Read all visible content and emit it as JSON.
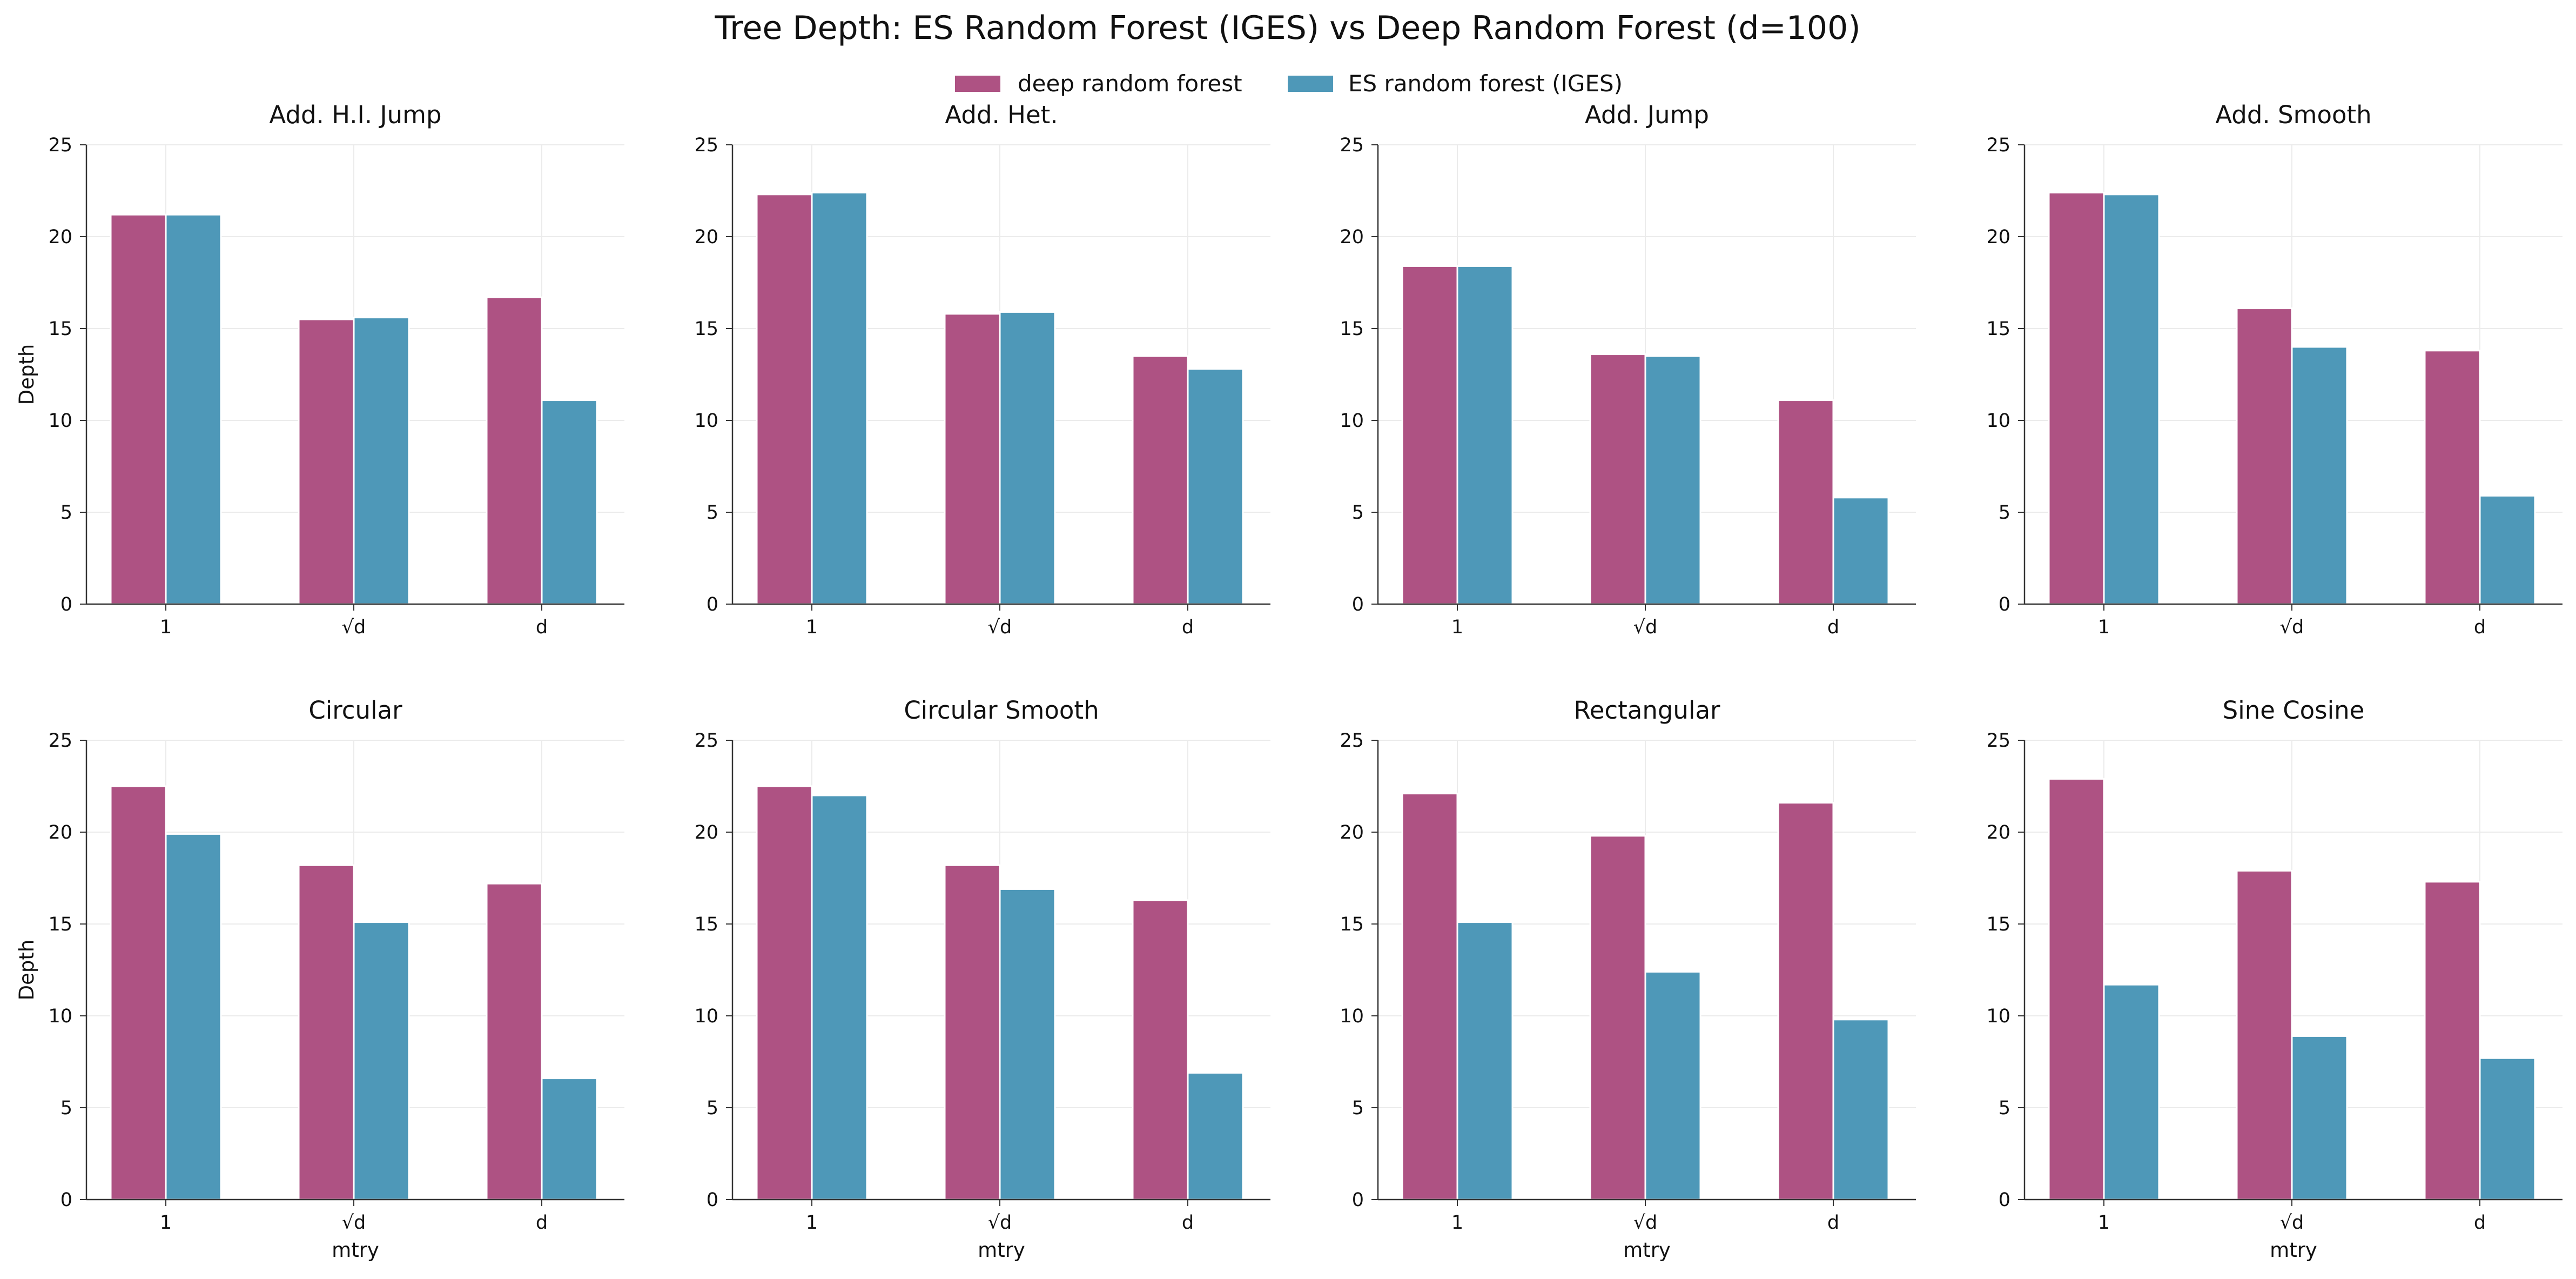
{
  "figure_title": "Tree Depth: ES Random Forest (IGES) vs Deep Random Forest (d=100)",
  "legend": [
    {
      "label": "deep random forest",
      "color": "#ae5283"
    },
    {
      "label": "ES random forest (IGES)",
      "color": "#4e98b8"
    }
  ],
  "chart_data": [
    {
      "type": "bar",
      "title": "Add. H.I. Jump",
      "categories": [
        "1",
        "√d",
        "d"
      ],
      "xlabel": "",
      "ylabel": "Depth",
      "ylim": [
        0,
        25
      ],
      "yticks": [
        "0",
        "5",
        "10",
        "15",
        "20",
        "25"
      ],
      "grid": true,
      "series": [
        {
          "name": "deep random forest",
          "values": [
            21.2,
            15.5,
            16.7
          ]
        },
        {
          "name": "ES random forest (IGES)",
          "values": [
            21.2,
            15.6,
            11.1
          ]
        }
      ]
    },
    {
      "type": "bar",
      "title": "Add. Het.",
      "categories": [
        "1",
        "√d",
        "d"
      ],
      "xlabel": "",
      "ylabel": "",
      "ylim": [
        0,
        25
      ],
      "yticks": [
        "0",
        "5",
        "10",
        "15",
        "20",
        "25"
      ],
      "grid": true,
      "series": [
        {
          "name": "deep random forest",
          "values": [
            22.3,
            15.8,
            13.5
          ]
        },
        {
          "name": "ES random forest (IGES)",
          "values": [
            22.4,
            15.9,
            12.8
          ]
        }
      ]
    },
    {
      "type": "bar",
      "title": "Add. Jump",
      "categories": [
        "1",
        "√d",
        "d"
      ],
      "xlabel": "",
      "ylabel": "",
      "ylim": [
        0,
        25
      ],
      "yticks": [
        "0",
        "5",
        "10",
        "15",
        "20",
        "25"
      ],
      "grid": true,
      "series": [
        {
          "name": "deep random forest",
          "values": [
            18.4,
            13.6,
            11.1
          ]
        },
        {
          "name": "ES random forest (IGES)",
          "values": [
            18.4,
            13.5,
            5.8
          ]
        }
      ]
    },
    {
      "type": "bar",
      "title": "Add. Smooth",
      "categories": [
        "1",
        "√d",
        "d"
      ],
      "xlabel": "",
      "ylabel": "",
      "ylim": [
        0,
        25
      ],
      "yticks": [
        "0",
        "5",
        "10",
        "15",
        "20",
        "25"
      ],
      "grid": true,
      "series": [
        {
          "name": "deep random forest",
          "values": [
            22.4,
            16.1,
            13.8
          ]
        },
        {
          "name": "ES random forest (IGES)",
          "values": [
            22.3,
            14.0,
            5.9
          ]
        }
      ]
    },
    {
      "type": "bar",
      "title": "Circular",
      "categories": [
        "1",
        "√d",
        "d"
      ],
      "xlabel": "mtry",
      "ylabel": "Depth",
      "ylim": [
        0,
        25
      ],
      "yticks": [
        "0",
        "5",
        "10",
        "15",
        "20",
        "25"
      ],
      "grid": true,
      "series": [
        {
          "name": "deep random forest",
          "values": [
            22.5,
            18.2,
            17.2
          ]
        },
        {
          "name": "ES random forest (IGES)",
          "values": [
            19.9,
            15.1,
            6.6
          ]
        }
      ]
    },
    {
      "type": "bar",
      "title": "Circular Smooth",
      "categories": [
        "1",
        "√d",
        "d"
      ],
      "xlabel": "mtry",
      "ylabel": "",
      "ylim": [
        0,
        25
      ],
      "yticks": [
        "0",
        "5",
        "10",
        "15",
        "20",
        "25"
      ],
      "grid": true,
      "series": [
        {
          "name": "deep random forest",
          "values": [
            22.5,
            18.2,
            16.3
          ]
        },
        {
          "name": "ES random forest (IGES)",
          "values": [
            22.0,
            16.9,
            6.9
          ]
        }
      ]
    },
    {
      "type": "bar",
      "title": "Rectangular",
      "categories": [
        "1",
        "√d",
        "d"
      ],
      "xlabel": "mtry",
      "ylabel": "",
      "ylim": [
        0,
        25
      ],
      "yticks": [
        "0",
        "5",
        "10",
        "15",
        "20",
        "25"
      ],
      "grid": true,
      "series": [
        {
          "name": "deep random forest",
          "values": [
            22.1,
            19.8,
            21.6
          ]
        },
        {
          "name": "ES random forest (IGES)",
          "values": [
            15.1,
            12.4,
            9.8
          ]
        }
      ]
    },
    {
      "type": "bar",
      "title": "Sine Cosine",
      "categories": [
        "1",
        "√d",
        "d"
      ],
      "xlabel": "mtry",
      "ylabel": "",
      "ylim": [
        0,
        25
      ],
      "yticks": [
        "0",
        "5",
        "10",
        "15",
        "20",
        "25"
      ],
      "grid": true,
      "series": [
        {
          "name": "deep random forest",
          "values": [
            22.9,
            17.9,
            17.3
          ]
        },
        {
          "name": "ES random forest (IGES)",
          "values": [
            11.7,
            8.9,
            7.7
          ]
        }
      ]
    }
  ]
}
